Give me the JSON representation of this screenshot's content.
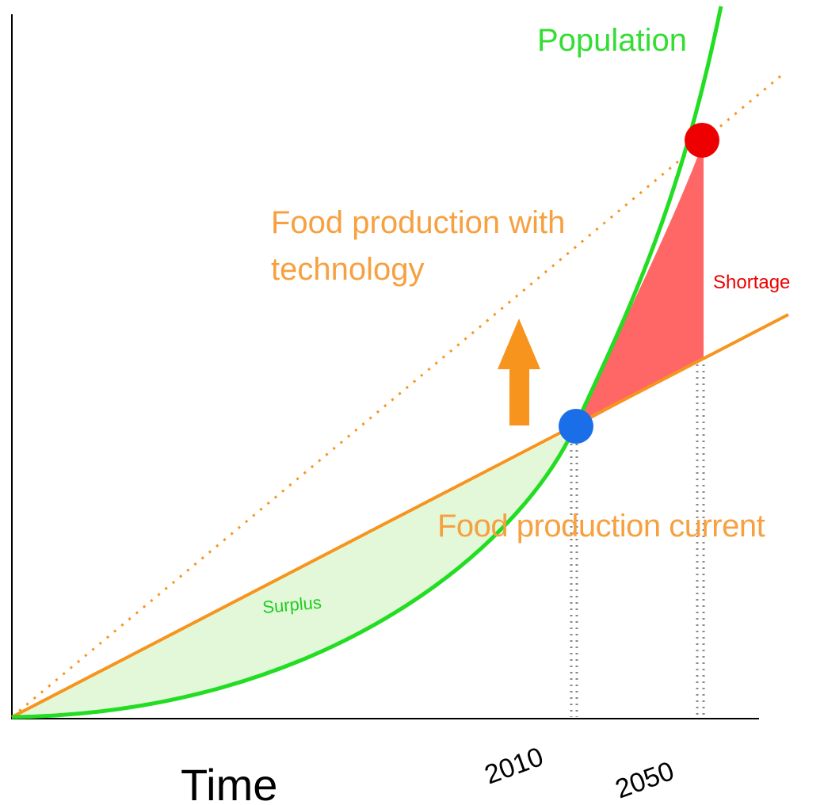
{
  "labels": {
    "population": "Population",
    "tech": [
      "Food production with",
      "technology"
    ],
    "shortage": "Shortage",
    "current": "Food production current",
    "surplus": "Surplus",
    "year_a": "2010",
    "year_b": "2050",
    "time": "Time"
  }
}
